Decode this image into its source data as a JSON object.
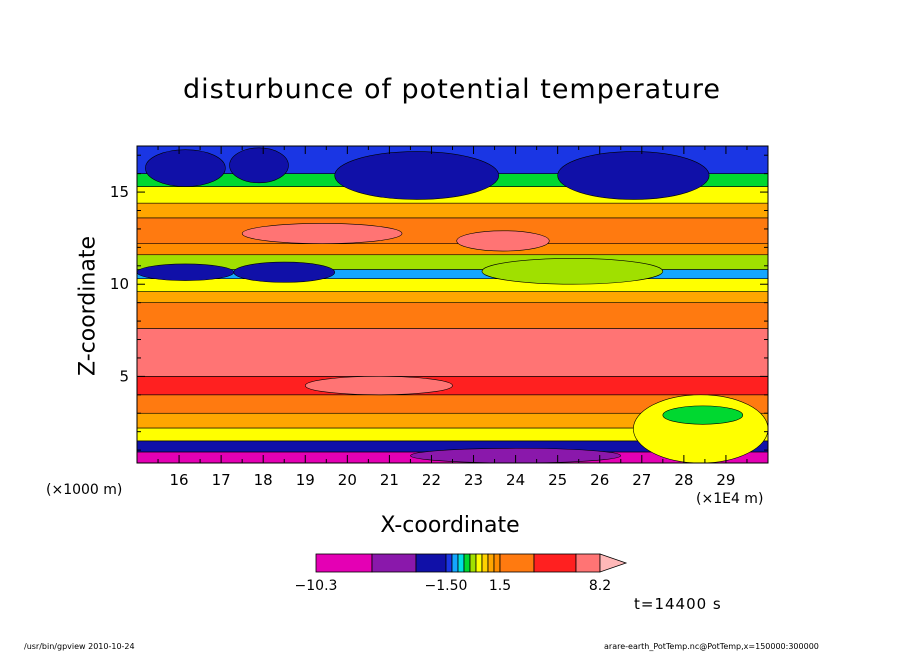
{
  "chart_data": {
    "type": "heatmap",
    "title": "disturbunce of potential temperature",
    "xlabel": "X-coordinate",
    "ylabel": "Z-coordinate",
    "x_unit_left": "(×1000 m)",
    "x_unit_right": "(×1E4 m)",
    "xlim": [
      15,
      30
    ],
    "ylim": [
      0.3,
      17.5
    ],
    "xticks": [
      16,
      17,
      18,
      19,
      20,
      21,
      22,
      23,
      24,
      25,
      26,
      27,
      28,
      29
    ],
    "yticks": [
      5,
      10,
      15
    ],
    "grid": false,
    "colorbar": {
      "levels": [
        -10.3,
        -7.5,
        -4.5,
        -1.5,
        -1.2,
        -0.9,
        -0.6,
        -0.3,
        0.3,
        0.6,
        0.9,
        1.2,
        1.5,
        3.5,
        5.5,
        7.0,
        8.2
      ],
      "tick_labels": [
        "−10.3",
        "−1.50",
        "1.5",
        "8.2"
      ],
      "colors": [
        "#e400b4",
        "#8a18ab",
        "#1010a8",
        "#1a36e4",
        "#14a6ff",
        "#00e0e0",
        "#00d830",
        "#a0e000",
        "#ffff00",
        "#ffd200",
        "#ffa600",
        "#ff8c00",
        "#ff7a10",
        "#ff2020",
        "#ff7474",
        "#ffb8b8"
      ]
    },
    "bands": [
      {
        "z": [
          0.3,
          0.9
        ],
        "value": -9.0
      },
      {
        "z": [
          0.9,
          1.5
        ],
        "value": -3.0
      },
      {
        "z": [
          1.5,
          2.2
        ],
        "value": 0.5
      },
      {
        "z": [
          2.2,
          3.0
        ],
        "value": 1.0
      },
      {
        "z": [
          3.0,
          4.0
        ],
        "value": 2.5
      },
      {
        "z": [
          4.0,
          5.0
        ],
        "value": 4.0
      },
      {
        "z": [
          5.0,
          7.6
        ],
        "value": 6.0
      },
      {
        "z": [
          7.6,
          9.0
        ],
        "value": 3.0
      },
      {
        "z": [
          9.0,
          9.6
        ],
        "value": 1.0
      },
      {
        "z": [
          9.6,
          10.3
        ],
        "value": 0.5
      },
      {
        "z": [
          10.3,
          10.8
        ],
        "value": -1.0
      },
      {
        "z": [
          10.8,
          11.6
        ],
        "value": 0.2
      },
      {
        "z": [
          11.6,
          12.2
        ],
        "value": 1.3
      },
      {
        "z": [
          12.2,
          13.6
        ],
        "value": 3.0
      },
      {
        "z": [
          13.6,
          14.4
        ],
        "value": 1.0
      },
      {
        "z": [
          14.4,
          15.3
        ],
        "value": 0.5
      },
      {
        "z": [
          15.3,
          16.0
        ],
        "value": -0.5
      },
      {
        "z": [
          16.0,
          17.5
        ],
        "value": -1.3
      }
    ],
    "blobs": [
      {
        "x": [
          15.0,
          17.3
        ],
        "z": [
          10.2,
          11.1
        ],
        "value": -4.0
      },
      {
        "x": [
          17.3,
          19.7
        ],
        "z": [
          10.1,
          11.2
        ],
        "value": -2.0
      },
      {
        "x": [
          23.2,
          27.5
        ],
        "z": [
          10.0,
          11.4
        ],
        "value": -0.2
      },
      {
        "x": [
          17.5,
          21.3
        ],
        "z": [
          12.2,
          13.3
        ],
        "value": 6.5
      },
      {
        "x": [
          22.6,
          24.8
        ],
        "z": [
          11.8,
          12.9
        ],
        "value": 6.5
      },
      {
        "x": [
          15.2,
          17.1
        ],
        "z": [
          15.3,
          17.3
        ],
        "value": -2.5
      },
      {
        "x": [
          17.2,
          18.6
        ],
        "z": [
          15.5,
          17.4
        ],
        "value": -2.5
      },
      {
        "x": [
          19.7,
          23.6
        ],
        "z": [
          14.6,
          17.2
        ],
        "value": -3.5
      },
      {
        "x": [
          25.0,
          28.6
        ],
        "z": [
          14.6,
          17.2
        ],
        "value": -3.5
      },
      {
        "x": [
          26.8,
          30.0
        ],
        "z": [
          0.3,
          4.0
        ],
        "value": 0.4
      },
      {
        "x": [
          27.5,
          29.4
        ],
        "z": [
          2.4,
          3.4
        ],
        "value": -0.5
      },
      {
        "x": [
          21.5,
          26.5
        ],
        "z": [
          0.3,
          1.1
        ],
        "value": -6.0
      },
      {
        "x": [
          19.0,
          22.5
        ],
        "z": [
          4.0,
          5.0
        ],
        "value": 5.5
      }
    ]
  },
  "timestamp": "t=14400 s",
  "footer_left": "/usr/bin/gpview  2010-10-24",
  "footer_right": "arare-earth_PotTemp.nc@PotTemp,x=150000:300000"
}
